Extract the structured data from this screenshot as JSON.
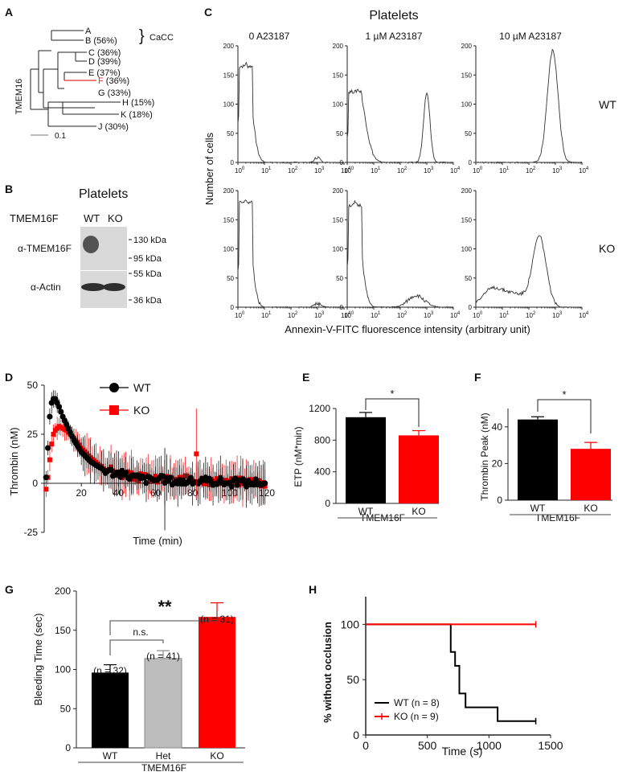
{
  "colors": {
    "wt": "#000000",
    "ko": "#ff0000",
    "het": "#bdbdbd",
    "axis": "#222222",
    "highlight": "#e0302a"
  },
  "panels": {
    "a": {
      "letter": "A",
      "family_label": "TMEM16",
      "leaves": [
        {
          "name": "A",
          "pct": ""
        },
        {
          "name": "B",
          "pct": "(56%)"
        },
        {
          "name": "C",
          "pct": "(36%)"
        },
        {
          "name": "D",
          "pct": "(39%)"
        },
        {
          "name": "E",
          "pct": "(37%)"
        },
        {
          "name": "F",
          "pct": "(36%)"
        },
        {
          "name": "G",
          "pct": "(33%)"
        },
        {
          "name": "H",
          "pct": "(15%)"
        },
        {
          "name": "K",
          "pct": "(18%)"
        },
        {
          "name": "J",
          "pct": "(30%)"
        }
      ],
      "cacc_label": "CaCC",
      "scale_label": "0.1"
    },
    "b": {
      "letter": "B",
      "title": "Platelets",
      "protein_label": "TMEM16F",
      "lanes": [
        "WT",
        "KO"
      ],
      "antibodies": [
        "α-TMEM16F",
        "α-Actin"
      ],
      "markers": [
        "130 kDa",
        "95 kDa",
        "55 kDa",
        "36 kDa"
      ]
    },
    "c": {
      "letter": "C",
      "title": "Platelets",
      "conditions": [
        "0  A23187",
        "1 µM A23187",
        "10 µM A23187"
      ],
      "rows": [
        "WT",
        "KO"
      ],
      "ylabel": "Number of cells",
      "xlabel": "Annexin-V-FITC fluorescence intensity (arbitrary unit)",
      "yticks": [
        "0",
        "50",
        "100",
        "150",
        "200"
      ],
      "xtick_base": "10",
      "xtick_exps": [
        "0",
        "1",
        "2",
        "3",
        "4"
      ]
    },
    "d": {
      "letter": "D",
      "ylabel": "Thrombin (nM)",
      "xlabel": "Time (min)",
      "yticks": [
        "-25",
        "0",
        "25",
        "50"
      ],
      "xticks": [
        "20",
        "40",
        "60",
        "80",
        "100",
        "120"
      ],
      "legend": [
        "WT",
        "KO"
      ]
    },
    "e": {
      "letter": "E",
      "ylabel": "ETP (nM*min)",
      "yticks": [
        "0",
        "400",
        "800",
        "1200"
      ],
      "group_label": "TMEM16F",
      "sig": "*"
    },
    "f": {
      "letter": "F",
      "ylabel": "Thrombin Peak (nM)",
      "yticks": [
        "0",
        "20",
        "40"
      ],
      "group_label": "TMEM16F",
      "sig": "*"
    },
    "g": {
      "letter": "G",
      "ylabel": "Bleeding Time (sec)",
      "yticks": [
        "0",
        "50",
        "100",
        "150",
        "200"
      ],
      "group_label": "TMEM16F",
      "n_labels": [
        "(n = 32)",
        "(n = 41)",
        "(n = 31)"
      ],
      "ns_label": "n.s.",
      "sig": "**"
    },
    "h": {
      "letter": "H",
      "ylabel": "% without occlusion",
      "xlabel": "Time (s)",
      "yticks": [
        "0",
        "50",
        "100"
      ],
      "xticks": [
        "0",
        "500",
        "1000",
        "1500"
      ],
      "legend": [
        "WT (n = 8)",
        "KO (n = 9)"
      ]
    }
  },
  "chart_data": [
    {
      "panel": "C",
      "type": "histogram",
      "x_scale": "log10",
      "xlim": [
        1,
        10000
      ],
      "ylim": [
        0,
        200
      ],
      "rows": [
        {
          "genotype": "WT",
          "panels": [
            {
              "condition": "0  A23187",
              "peaks": [
                {
                  "log_x": 0.3,
                  "height": 170,
                  "sd": 0.22
                },
                {
                  "log_x": 3.0,
                  "height": 9,
                  "sd": 0.1
                }
              ]
            },
            {
              "condition": "1 µM A23187",
              "peaks": [
                {
                  "log_x": 0.4,
                  "height": 125,
                  "sd": 0.28
                },
                {
                  "log_x": 3.0,
                  "height": 118,
                  "sd": 0.12
                }
              ]
            },
            {
              "condition": "10 µM A23187",
              "peaks": [
                {
                  "log_x": 2.9,
                  "height": 192,
                  "sd": 0.2
                }
              ]
            }
          ]
        },
        {
          "genotype": "KO",
          "panels": [
            {
              "condition": "0  A23187",
              "peaks": [
                {
                  "log_x": 0.3,
                  "height": 185,
                  "sd": 0.2
                },
                {
                  "log_x": 3.0,
                  "height": 6,
                  "sd": 0.15
                }
              ]
            },
            {
              "condition": "1 µM A23187",
              "peaks": [
                {
                  "log_x": 0.3,
                  "height": 180,
                  "sd": 0.22
                },
                {
                  "log_x": 2.6,
                  "height": 20,
                  "sd": 0.3
                }
              ]
            },
            {
              "condition": "10 µM A23187",
              "peaks": [
                {
                  "log_x": 0.6,
                  "height": 28,
                  "sd": 0.4
                },
                {
                  "log_x": 1.5,
                  "height": 22,
                  "sd": 0.5
                },
                {
                  "log_x": 2.4,
                  "height": 118,
                  "sd": 0.25
                }
              ]
            }
          ]
        }
      ]
    },
    {
      "panel": "D",
      "type": "line",
      "title": "",
      "xlabel": "Time (min)",
      "ylabel": "Thrombin (nM)",
      "xlim": [
        0,
        120
      ],
      "ylim": [
        -25,
        50
      ],
      "series": [
        {
          "name": "WT",
          "x": [
            1,
            2,
            3,
            4,
            5,
            6,
            7,
            8,
            10,
            12,
            14,
            16,
            18,
            20,
            25,
            30,
            35,
            40,
            45,
            50,
            55,
            60,
            65,
            70,
            75,
            80,
            85,
            90,
            95,
            100,
            105,
            110,
            115,
            118
          ],
          "y": [
            3,
            18,
            34,
            41,
            43,
            43,
            41,
            39,
            34,
            30,
            26,
            22,
            19,
            16,
            11,
            8,
            6,
            5,
            4,
            3,
            2,
            2,
            2,
            1,
            1,
            1,
            1,
            1,
            1,
            0,
            1,
            0,
            1,
            0
          ]
        },
        {
          "name": "KO",
          "x": [
            1,
            2,
            3,
            4,
            5,
            6,
            7,
            8,
            10,
            12,
            14,
            16,
            18,
            20,
            25,
            30,
            35,
            40,
            45,
            50,
            55,
            60,
            65,
            70,
            75,
            80,
            85,
            90,
            95,
            100,
            105,
            110,
            115,
            118
          ],
          "y": [
            -3,
            3,
            12,
            20,
            25,
            27,
            28,
            29,
            28,
            27,
            25,
            23,
            21,
            18,
            13,
            9,
            7,
            5,
            4,
            3,
            3,
            2,
            2,
            2,
            2,
            2,
            2,
            1,
            1,
            1,
            1,
            1,
            1,
            0
          ]
        }
      ]
    },
    {
      "panel": "E",
      "type": "bar",
      "categories": [
        "WT",
        "KO"
      ],
      "values": [
        1090,
        860
      ],
      "errors": [
        60,
        60
      ],
      "ylabel": "ETP (nM*min)",
      "ylim": [
        0,
        1200
      ]
    },
    {
      "panel": "F",
      "type": "bar",
      "categories": [
        "WT",
        "KO"
      ],
      "values": [
        44,
        28
      ],
      "errors": [
        1.5,
        3.5
      ],
      "ylabel": "Thrombin Peak (nM)",
      "ylim": [
        0,
        50
      ]
    },
    {
      "panel": "G",
      "type": "bar",
      "categories": [
        "WT",
        "Het",
        "KO"
      ],
      "values": [
        96,
        114,
        167
      ],
      "errors": [
        10,
        10,
        18
      ],
      "ylabel": "Bleeding Time (sec)",
      "ylim": [
        0,
        200
      ]
    },
    {
      "panel": "H",
      "type": "line",
      "xlabel": "Time (s)",
      "ylabel": "% without occlusion",
      "xlim": [
        0,
        1500
      ],
      "ylim": [
        0,
        125
      ],
      "series": [
        {
          "name": "WT (n = 8)",
          "x": [
            0,
            690,
            690,
            725,
            725,
            760,
            760,
            810,
            810,
            1070,
            1070,
            1290,
            1290,
            1380
          ],
          "y": [
            100,
            100,
            75,
            75,
            62.5,
            62.5,
            37.5,
            37.5,
            25,
            25,
            12.5,
            12.5,
            12.5,
            12.5
          ]
        },
        {
          "name": "KO (n = 9)",
          "x": [
            0,
            1380
          ],
          "y": [
            100,
            100
          ]
        }
      ]
    }
  ]
}
